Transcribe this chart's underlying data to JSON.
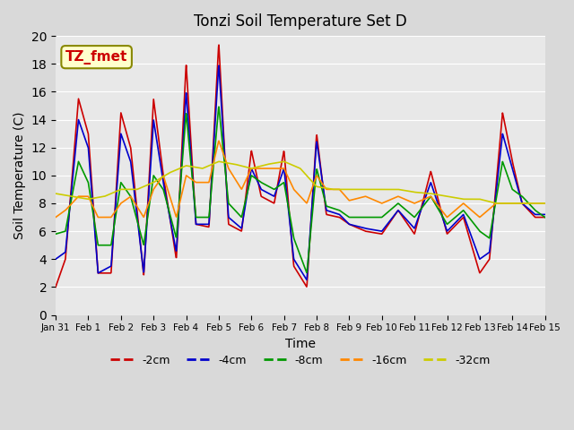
{
  "title": "Tonzi Soil Temperature Set D",
  "xlabel": "Time",
  "ylabel": "Soil Temperature (C)",
  "ylim": [
    0,
    20
  ],
  "xlim_days": [
    0,
    15
  ],
  "x_tick_labels": [
    "Jan 31",
    "Feb 1",
    "Feb 2",
    "Feb 3",
    "Feb 4",
    "Feb 5",
    "Feb 6",
    "Feb 7",
    "Feb 8",
    "Feb 9",
    "Feb 10",
    "Feb 11",
    "Feb 12",
    "Feb 13",
    "Feb 14",
    "Feb 15"
  ],
  "legend_labels": [
    "-2cm",
    "-4cm",
    "-8cm",
    "-16cm",
    "-32cm"
  ],
  "legend_colors": [
    "#cc0000",
    "#0000cc",
    "#009900",
    "#ff8800",
    "#cccc00"
  ],
  "line_colors": [
    "#cc0000",
    "#0000cc",
    "#009900",
    "#ff8800",
    "#cccc00"
  ],
  "annotation_text": "TZ_fmet",
  "annotation_color": "#cc0000",
  "annotation_bg": "#ffffcc",
  "background_color": "#d9d9d9",
  "plot_bg_color": "#e8e8e8"
}
